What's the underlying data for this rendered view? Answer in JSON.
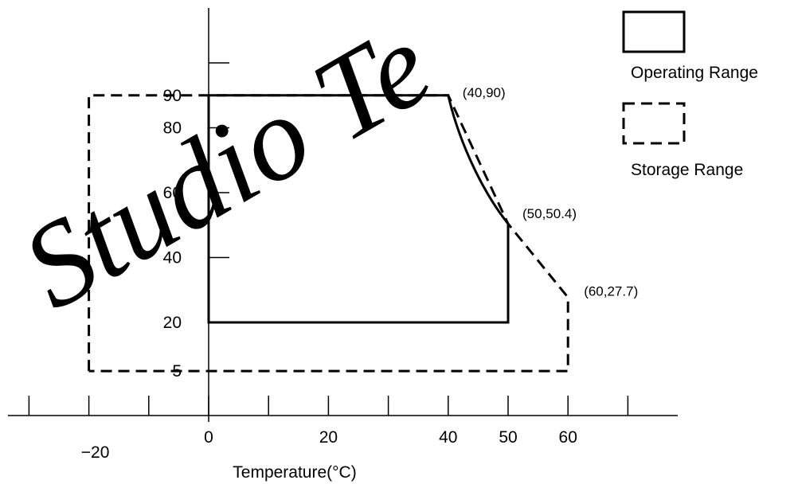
{
  "watermark": "Studio Te",
  "chart_data": {
    "type": "area",
    "title": "",
    "xlabel": "Temperature(°C)",
    "ylabel": "",
    "x_tick_labels": [
      -20,
      0,
      20,
      40,
      50,
      60
    ],
    "x_minor_ticks": [
      -30,
      -20,
      -10,
      0,
      10,
      20,
      30,
      40,
      50,
      60,
      70
    ],
    "y_tick_labels": [
      5,
      20,
      40,
      60,
      80,
      90
    ],
    "y_minor_ticks": [
      20,
      40,
      60,
      80,
      100
    ],
    "series": [
      {
        "name": "Operating Range",
        "line_style": "solid",
        "points": [
          [
            0,
            20
          ],
          [
            0,
            90
          ],
          [
            40,
            90
          ],
          [
            50,
            50.4
          ],
          [
            50,
            20
          ],
          [
            0,
            20
          ]
        ],
        "curved_segment": [
          [
            40,
            90
          ],
          [
            42.5,
            75
          ],
          [
            45,
            65
          ],
          [
            47.5,
            57
          ],
          [
            50,
            50.4
          ]
        ]
      },
      {
        "name": "Storage Range",
        "line_style": "dashed",
        "points": [
          [
            -20,
            5
          ],
          [
            -20,
            90
          ],
          [
            40,
            90
          ],
          [
            50,
            50.4
          ],
          [
            60,
            27.7
          ],
          [
            60,
            5
          ],
          [
            -20,
            5
          ]
        ]
      }
    ],
    "annotations": [
      "(40,90)",
      "(50,50.4)",
      "(60,27.7)"
    ],
    "legend": {
      "position": "right",
      "entries": [
        "Operating Range",
        "Storage Range"
      ]
    }
  }
}
